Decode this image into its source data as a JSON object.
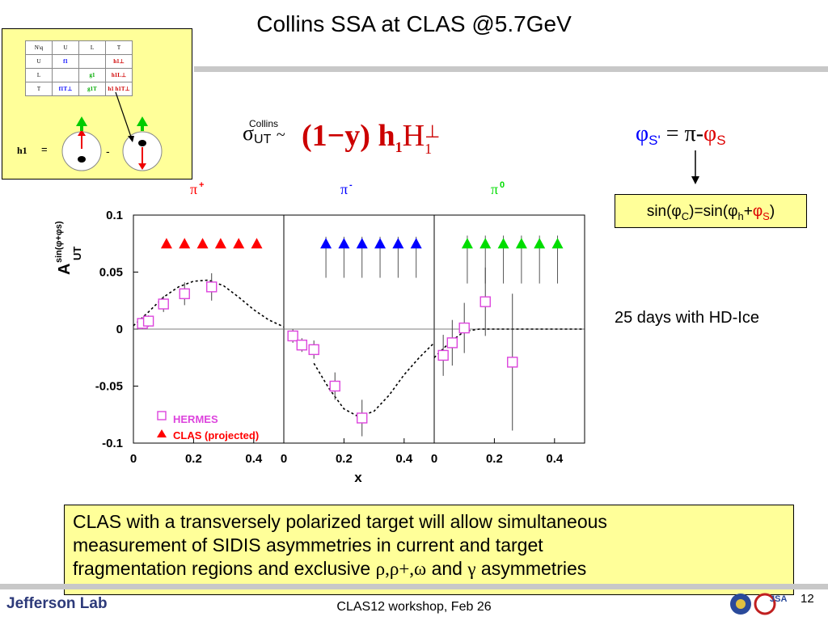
{
  "slide": {
    "title": "Collins SSA at CLAS @5.7GeV",
    "footer": "CLAS12 workshop,  Feb 26",
    "page_number": "12",
    "logo_text": "Jefferson Lab",
    "logo_right_text": "JSA"
  },
  "tmd_table": {
    "header": [
      "N\\q",
      "U",
      "L",
      "T"
    ],
    "rows": [
      {
        "label": "U",
        "U": "f1",
        "L": "",
        "T": "h1⊥"
      },
      {
        "label": "L",
        "U": "",
        "L": "g1",
        "T": "h1L⊥"
      },
      {
        "label": "T",
        "U": "f1T⊥",
        "L": "g1T",
        "T": "h1 h1T⊥"
      }
    ],
    "h1_label": "h1",
    "equals": "=",
    "minus": "-"
  },
  "formula": {
    "collins_label": "Collins",
    "sigma": "σ",
    "sigma_sub": "UT",
    "tilde": "~",
    "expression": "(1−y) h",
    "expr_sub": "1",
    "expr_H": "H",
    "expr_H_sub": "1",
    "expr_H_sup": "⊥"
  },
  "phi_relation": {
    "phi": "φ",
    "phi_sub": "S'",
    "eq": "=",
    "pi": "π-",
    "phi2": "φ",
    "phi2_sub": "S"
  },
  "sin_box": {
    "prefix": "sin(φ",
    "sub_c": "C",
    "mid": ")=sin(φ",
    "sub_h": "h",
    "plus": "+",
    "phi": "φ",
    "sub_s": "S",
    "close": ")"
  },
  "note": "25 days with HD-Ice",
  "conclusion": {
    "line1": "CLAS with a transversely polarized target will allow simultaneous",
    "line2": "measurement of SIDIS asymmetries in current and target",
    "line3_prefix": "fragmentation regions and  exclusive ",
    "line3_mesons": "ρ,ρ+,ω",
    "line3_and": " and ",
    "line3_gamma": "γ",
    "line3_suffix": " asymmetries"
  },
  "colors": {
    "pi_plus": "#ff0000",
    "pi_minus": "#0000ff",
    "pi_zero": "#00dd00",
    "hermes": "#dd44dd",
    "clas": "#ff0000",
    "highlight": "#ffff99"
  },
  "chart_data": {
    "type": "scatter",
    "ylabel": "A",
    "ylabel_sup": "sin(φ+φs)",
    "ylabel_sub": "UT",
    "xlabel": "x",
    "ylim": [
      -0.1,
      0.1
    ],
    "yticks": [
      "0.1",
      "0.05",
      "0",
      "-0.05",
      "-0.1"
    ],
    "xticks": [
      "0",
      "0.2",
      "0.4"
    ],
    "legend": [
      {
        "label": "HERMES",
        "marker": "open-square",
        "color": "#dd44dd"
      },
      {
        "label": "CLAS (projected)",
        "marker": "triangle",
        "color": "#ff0000"
      }
    ],
    "panels": [
      {
        "label": "π+",
        "label_base": "π",
        "label_sup": "+",
        "color": "#ff0000",
        "hermes": [
          {
            "x": 0.03,
            "y": 0.005,
            "err": 0.005
          },
          {
            "x": 0.05,
            "y": 0.007,
            "err": 0.005
          },
          {
            "x": 0.1,
            "y": 0.022,
            "err": 0.007
          },
          {
            "x": 0.17,
            "y": 0.031,
            "err": 0.01
          },
          {
            "x": 0.26,
            "y": 0.037,
            "err": 0.012
          }
        ],
        "clas": {
          "x": [
            0.11,
            0.17,
            0.23,
            0.29,
            0.35,
            0.41
          ],
          "y": 0.075,
          "err": 0.0
        },
        "theory": [
          [
            0.0,
            0.003
          ],
          [
            0.05,
            0.015
          ],
          [
            0.1,
            0.028
          ],
          [
            0.15,
            0.037
          ],
          [
            0.2,
            0.042
          ],
          [
            0.25,
            0.043
          ],
          [
            0.3,
            0.038
          ],
          [
            0.35,
            0.028
          ],
          [
            0.4,
            0.017
          ],
          [
            0.45,
            0.008
          ],
          [
            0.5,
            0.002
          ]
        ]
      },
      {
        "label": "π-",
        "label_base": "π",
        "label_sup": "-",
        "color": "#0000ff",
        "hermes": [
          {
            "x": 0.03,
            "y": -0.006,
            "err": 0.006
          },
          {
            "x": 0.06,
            "y": -0.014,
            "err": 0.006
          },
          {
            "x": 0.1,
            "y": -0.018,
            "err": 0.008
          },
          {
            "x": 0.17,
            "y": -0.05,
            "err": 0.012
          },
          {
            "x": 0.26,
            "y": -0.078,
            "err": 0.016
          }
        ],
        "clas": {
          "x": [
            0.14,
            0.2,
            0.26,
            0.32,
            0.38,
            0.44
          ],
          "y": 0.075,
          "err": 0.03
        },
        "theory": [
          [
            0.1,
            -0.03
          ],
          [
            0.15,
            -0.052
          ],
          [
            0.2,
            -0.07
          ],
          [
            0.25,
            -0.077
          ],
          [
            0.3,
            -0.072
          ],
          [
            0.35,
            -0.058
          ],
          [
            0.4,
            -0.04
          ],
          [
            0.45,
            -0.025
          ],
          [
            0.5,
            -0.012
          ]
        ]
      },
      {
        "label": "π0",
        "label_base": "π",
        "label_sup": "0",
        "color": "#00dd00",
        "hermes": [
          {
            "x": 0.03,
            "y": -0.023,
            "err": 0.018
          },
          {
            "x": 0.06,
            "y": -0.012,
            "err": 0.02
          },
          {
            "x": 0.1,
            "y": 0.001,
            "err": 0.022
          },
          {
            "x": 0.17,
            "y": 0.024,
            "err": 0.03
          },
          {
            "x": 0.26,
            "y": -0.029,
            "err": 0.06
          }
        ],
        "clas": {
          "x": [
            0.11,
            0.17,
            0.23,
            0.29,
            0.35,
            0.41
          ],
          "y": 0.075,
          "err": 0.035
        },
        "theory": [
          [
            0.0,
            -0.025
          ],
          [
            0.05,
            -0.012
          ],
          [
            0.1,
            -0.002
          ],
          [
            0.15,
            0.0
          ],
          [
            0.2,
            0.0
          ],
          [
            0.3,
            0.0
          ],
          [
            0.4,
            0.0
          ],
          [
            0.5,
            0.0
          ]
        ]
      }
    ]
  }
}
